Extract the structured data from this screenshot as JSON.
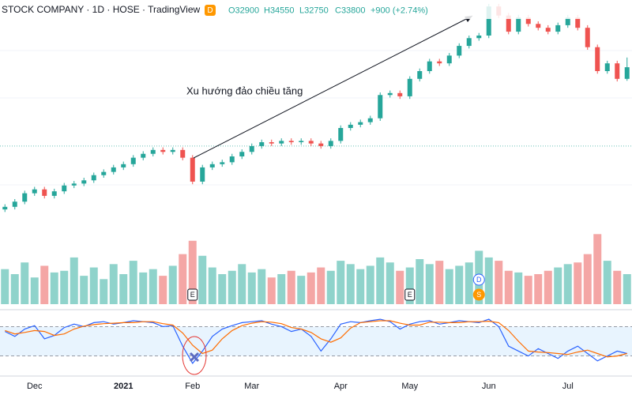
{
  "header": {
    "title": "STOCK COMPANY · 1D · HOSE · TradingView",
    "badge": "D",
    "ohlc": [
      "O32900",
      "H34550",
      "L32750",
      "C33800",
      "+900 (+2.74%)"
    ]
  },
  "chart_data": {
    "type": "candlestick",
    "annotation": "Xu hướng đảo chiều tăng",
    "x": [
      null,
      null,
      null,
      "Dec",
      null,
      null,
      null,
      null,
      null,
      null,
      null,
      null,
      "2021",
      null,
      null,
      null,
      null,
      null,
      null,
      "Feb",
      null,
      null,
      null,
      null,
      null,
      "Mar",
      null,
      null,
      null,
      null,
      null,
      null,
      null,
      null,
      "Apr",
      null,
      null,
      null,
      null,
      null,
      null,
      "May",
      null,
      null,
      null,
      null,
      null,
      null,
      null,
      "Jun",
      null,
      null,
      null,
      null,
      null,
      null,
      null,
      "Jul",
      null,
      null,
      null,
      null,
      null,
      null
    ],
    "open": [
      22800,
      23000,
      23400,
      24050,
      24350,
      23850,
      24200,
      24650,
      24800,
      25050,
      25450,
      25700,
      26050,
      26300,
      26800,
      27100,
      27400,
      27250,
      27400,
      26800,
      24950,
      26050,
      26300,
      26450,
      26900,
      27250,
      27700,
      28000,
      27900,
      28100,
      28000,
      28100,
      27900,
      27700,
      28100,
      29100,
      29350,
      29550,
      29850,
      31650,
      31800,
      31550,
      32900,
      33500,
      34250,
      34100,
      34700,
      35450,
      36050,
      36250,
      38500,
      37800,
      36550,
      37650,
      37150,
      36850,
      36550,
      37050,
      37650,
      36850,
      35350,
      33500,
      34100,
      32900
    ],
    "high": [
      23200,
      23600,
      24250,
      24550,
      24550,
      24400,
      24850,
      25000,
      25250,
      25650,
      25900,
      26250,
      26500,
      27000,
      27300,
      27600,
      27600,
      27600,
      27600,
      27000,
      26250,
      26500,
      26650,
      27100,
      27450,
      27900,
      28200,
      28200,
      28300,
      28300,
      28300,
      28300,
      28100,
      28300,
      29300,
      29550,
      29750,
      30050,
      31850,
      32000,
      32000,
      33100,
      33700,
      34450,
      34450,
      34900,
      35650,
      36250,
      36450,
      38700,
      38700,
      38000,
      37850,
      37850,
      37350,
      37050,
      37250,
      37850,
      37850,
      37050,
      35550,
      34300,
      34300,
      34550
    ],
    "low": [
      22600,
      22800,
      23200,
      23850,
      23650,
      23650,
      24000,
      24450,
      24600,
      24850,
      25250,
      25500,
      25850,
      26100,
      26600,
      26900,
      27050,
      27050,
      26600,
      24750,
      24750,
      25850,
      26100,
      26250,
      26700,
      27050,
      27500,
      27700,
      27700,
      27800,
      27800,
      27700,
      27500,
      27500,
      27900,
      28900,
      29150,
      29350,
      29650,
      31450,
      31350,
      31350,
      32700,
      33300,
      33900,
      33900,
      34500,
      35250,
      35850,
      36050,
      37600,
      36350,
      36350,
      36950,
      36650,
      36350,
      36350,
      36850,
      36650,
      35150,
      33300,
      33300,
      32700,
      32750
    ],
    "close": [
      23000,
      23400,
      24050,
      24350,
      23850,
      24200,
      24650,
      24800,
      25050,
      25450,
      25700,
      26050,
      26300,
      26800,
      27100,
      27400,
      27250,
      27400,
      26800,
      24950,
      26050,
      26300,
      26450,
      26900,
      27250,
      27700,
      28000,
      27900,
      28100,
      28000,
      28100,
      27900,
      27700,
      28100,
      29100,
      29350,
      29550,
      29850,
      31650,
      31800,
      31550,
      32900,
      33500,
      34250,
      34100,
      34700,
      35450,
      36050,
      36250,
      38500,
      37800,
      36550,
      37650,
      37150,
      36850,
      36550,
      37050,
      37650,
      36850,
      35350,
      33500,
      34100,
      32900,
      33800
    ],
    "ylim": [
      22500,
      39000
    ],
    "price_line": 27700,
    "colors": {
      "up": "#26a69a",
      "down": "#ef5350",
      "up_volume": "#8fd3cb",
      "down_volume": "#f4a6a5"
    },
    "volume": {
      "values": [
        2.1,
        1.8,
        2.5,
        1.6,
        2.3,
        1.9,
        2.0,
        2.8,
        1.7,
        2.2,
        1.5,
        2.4,
        1.8,
        2.6,
        1.9,
        2.1,
        1.7,
        2.3,
        3.0,
        3.8,
        2.9,
        2.2,
        1.8,
        2.0,
        2.4,
        1.9,
        2.1,
        1.6,
        1.8,
        2.0,
        1.7,
        1.9,
        2.2,
        2.0,
        2.6,
        2.4,
        2.1,
        2.3,
        2.8,
        2.5,
        2.0,
        2.2,
        2.7,
        2.4,
        2.6,
        2.1,
        2.3,
        2.5,
        3.2,
        2.8,
        2.6,
        2.0,
        1.9,
        1.7,
        1.8,
        2.0,
        2.2,
        2.4,
        2.5,
        3.0,
        4.2,
        2.6,
        2.0,
        1.8
      ],
      "ylim": [
        0,
        4.5
      ]
    },
    "markers": [
      "E",
      "E",
      "D",
      "S"
    ],
    "stochastic": {
      "ylim": [
        0,
        100
      ],
      "levels": [
        20,
        80
      ],
      "k": {
        "color": "#2962ff",
        "values": [
          70,
          60,
          75,
          82,
          55,
          62,
          78,
          85,
          80,
          88,
          90,
          85,
          88,
          92,
          90,
          88,
          80,
          82,
          40,
          5,
          30,
          60,
          75,
          82,
          88,
          90,
          92,
          85,
          80,
          70,
          75,
          60,
          30,
          55,
          85,
          90,
          88,
          92,
          95,
          90,
          75,
          85,
          90,
          92,
          85,
          88,
          92,
          90,
          88,
          95,
          80,
          40,
          30,
          20,
          35,
          25,
          15,
          30,
          40,
          25,
          10,
          20,
          30,
          25
        ]
      },
      "d": {
        "color": "#ff6d00",
        "values": [
          72,
          65,
          68,
          72,
          70,
          62,
          65,
          75,
          81,
          84,
          86,
          87,
          88,
          88,
          90,
          90,
          86,
          83,
          67,
          42,
          25,
          32,
          55,
          72,
          82,
          87,
          90,
          89,
          86,
          78,
          75,
          68,
          55,
          48,
          57,
          77,
          88,
          90,
          92,
          92,
          87,
          83,
          83,
          89,
          89,
          88,
          88,
          90,
          90,
          91,
          88,
          72,
          50,
          30,
          28,
          27,
          25,
          23,
          28,
          32,
          25,
          18,
          20,
          25
        ]
      }
    }
  }
}
